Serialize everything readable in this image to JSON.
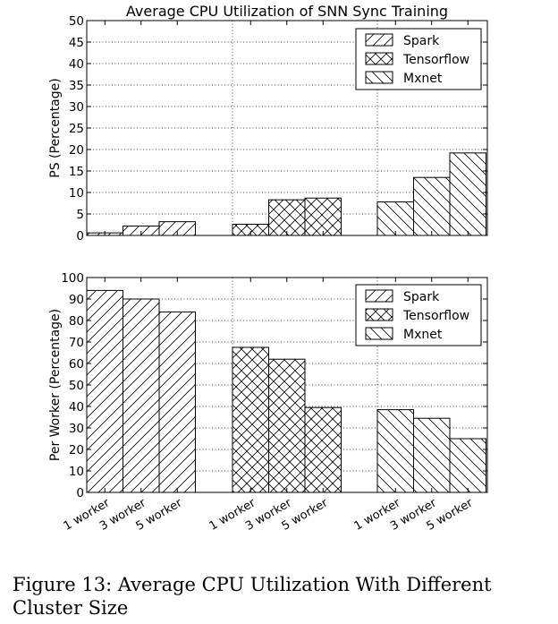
{
  "chart_data": [
    {
      "type": "bar",
      "title": "Average CPU Utilization of SNN Sync Training",
      "ylabel": "PS (Percentage)",
      "xlabel": "",
      "ylim": [
        0,
        50
      ],
      "yticks": [
        0,
        5,
        10,
        15,
        20,
        25,
        30,
        35,
        40,
        45,
        50
      ],
      "grid": true,
      "legend_position": "top-right",
      "groups": [
        "Spark",
        "Tensorflow",
        "Mxnet"
      ],
      "categories": [
        "1 worker",
        "3 worker",
        "5 worker"
      ],
      "series": [
        {
          "name": "Spark",
          "hatch": "forward-diagonal",
          "values": [
            0.6,
            2.2,
            3.2
          ]
        },
        {
          "name": "Tensorflow",
          "hatch": "cross",
          "values": [
            2.6,
            8.3,
            8.7
          ]
        },
        {
          "name": "Mxnet",
          "hatch": "back-diagonal",
          "values": [
            7.8,
            13.5,
            19.2
          ]
        }
      ]
    },
    {
      "type": "bar",
      "title": "",
      "ylabel": "Per Worker (Percentage)",
      "xlabel": "",
      "ylim": [
        0,
        100
      ],
      "yticks": [
        0,
        10,
        20,
        30,
        40,
        50,
        60,
        70,
        80,
        90,
        100
      ],
      "grid": true,
      "legend_position": "top-right",
      "groups": [
        "Spark",
        "Tensorflow",
        "Mxnet"
      ],
      "categories": [
        "1 worker",
        "3 worker",
        "5 worker"
      ],
      "series": [
        {
          "name": "Spark",
          "hatch": "forward-diagonal",
          "values": [
            94,
            90,
            84
          ]
        },
        {
          "name": "Tensorflow",
          "hatch": "cross",
          "values": [
            67.5,
            62,
            39.5
          ]
        },
        {
          "name": "Mxnet",
          "hatch": "back-diagonal",
          "values": [
            38.5,
            34.5,
            25
          ]
        }
      ]
    }
  ],
  "caption": "Figure 13: Average CPU Utilization With Different Cluster Size"
}
